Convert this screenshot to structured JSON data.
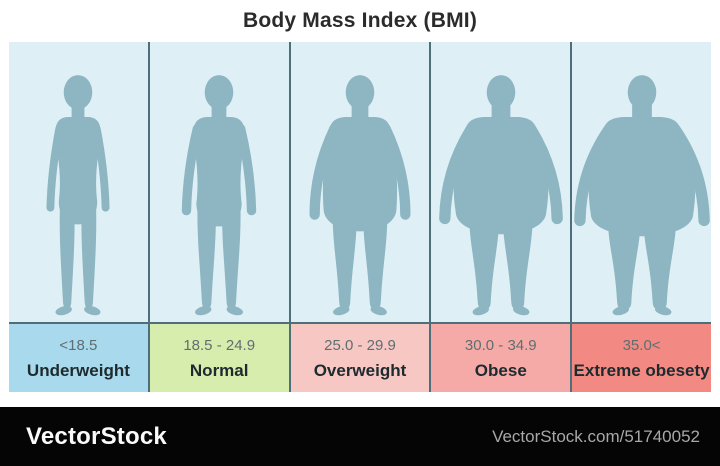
{
  "title": "Body Mass Index (BMI)",
  "categories": [
    {
      "id": "underweight",
      "range": "<18.5",
      "label": "Underweight",
      "band_color": "#a9d9ed"
    },
    {
      "id": "normal",
      "range": "18.5 - 24.9",
      "label": "Normal",
      "band_color": "#d7edae"
    },
    {
      "id": "overweight",
      "range": "25.0 - 29.9",
      "label": "Overweight",
      "band_color": "#f7c7c4"
    },
    {
      "id": "obese",
      "range": "30.0 - 34.9",
      "label": "Obese",
      "band_color": "#f5aaa7"
    },
    {
      "id": "extreme-obesity",
      "range": "35.0<",
      "label": "Extreme obesety",
      "band_color": "#f28982"
    }
  ],
  "colors": {
    "figure_background": "#def0f6",
    "silhouette": "#8db6c2",
    "divider": "#4e6e7a",
    "range_text": "#5e6e71",
    "label_text": "#1d2a2e",
    "watermark_bar": "#050505"
  },
  "watermark": {
    "brand": "VectorStock",
    "credit": "VectorStock.com/51740052"
  }
}
